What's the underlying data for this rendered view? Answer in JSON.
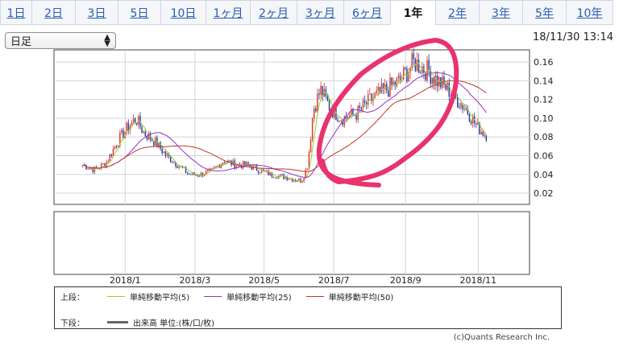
{
  "tabs": [
    "1日",
    "2日",
    "3日",
    "5日",
    "10日",
    "1ヶ月",
    "2ヶ月",
    "3ヶ月",
    "6ヶ月",
    "1年",
    "2年",
    "3年",
    "5年",
    "10年"
  ],
  "active_tab": 9,
  "selector": {
    "value": "日足"
  },
  "timestamp": "18/11/30 13:14",
  "legend": {
    "upper_label": "上段：",
    "lower_label": "下段：",
    "ma5": "単純移動平均(5)",
    "ma25": "単純移動平均(25)",
    "ma50": "単純移動平均(50)",
    "volume": "出来高 単位:(株/口/枚)"
  },
  "copyright": "(c)Quants Research Inc.",
  "colors": {
    "up": "#e0362e",
    "down": "#1f3fa6",
    "ma5": "#9acd32",
    "ma25": "#9b30c8",
    "ma50": "#c0392b",
    "annotation": "#e8336d"
  },
  "chart_data": {
    "type": "candlestick",
    "x_ticks": [
      "2018/1",
      "2018/3",
      "2018/5",
      "2018/7",
      "2018/9",
      "2018/11"
    ],
    "x_tick_positions": [
      0.247,
      0.489,
      0.729,
      0.971,
      1.22,
      1.472
    ],
    "x_range": [
      0.0,
      1.65
    ],
    "y_ticks": [
      0.02,
      0.04,
      0.06,
      0.08,
      0.1,
      0.12,
      0.14,
      0.16
    ],
    "ylim": [
      0.008,
      0.173
    ],
    "series": [
      {
        "name": "単純移動平均(5)",
        "period": 5
      },
      {
        "name": "単純移動平均(25)",
        "period": 25
      },
      {
        "name": "単純移動平均(50)",
        "period": 50
      }
    ],
    "price_path": [
      [
        0.1,
        0.05
      ],
      [
        0.14,
        0.045
      ],
      [
        0.18,
        0.052
      ],
      [
        0.22,
        0.075
      ],
      [
        0.26,
        0.092
      ],
      [
        0.285,
        0.1
      ],
      [
        0.31,
        0.085
      ],
      [
        0.35,
        0.075
      ],
      [
        0.39,
        0.06
      ],
      [
        0.43,
        0.05
      ],
      [
        0.47,
        0.04
      ],
      [
        0.51,
        0.04
      ],
      [
        0.55,
        0.044
      ],
      [
        0.59,
        0.055
      ],
      [
        0.63,
        0.05
      ],
      [
        0.67,
        0.05
      ],
      [
        0.71,
        0.045
      ],
      [
        0.75,
        0.04
      ],
      [
        0.79,
        0.038
      ],
      [
        0.83,
        0.035
      ],
      [
        0.86,
        0.033
      ],
      [
        0.88,
        0.05
      ],
      [
        0.9,
        0.11
      ],
      [
        0.925,
        0.13
      ],
      [
        0.96,
        0.11
      ],
      [
        1.0,
        0.1
      ],
      [
        1.05,
        0.105
      ],
      [
        1.1,
        0.12
      ],
      [
        1.15,
        0.13
      ],
      [
        1.2,
        0.14
      ],
      [
        1.25,
        0.16
      ],
      [
        1.3,
        0.15
      ],
      [
        1.33,
        0.14
      ],
      [
        1.37,
        0.13
      ],
      [
        1.4,
        0.12
      ],
      [
        1.43,
        0.11
      ],
      [
        1.47,
        0.09
      ],
      [
        1.5,
        0.082
      ]
    ],
    "annotation": "hand-drawn circle highlighting the July–October 2018 rally"
  }
}
